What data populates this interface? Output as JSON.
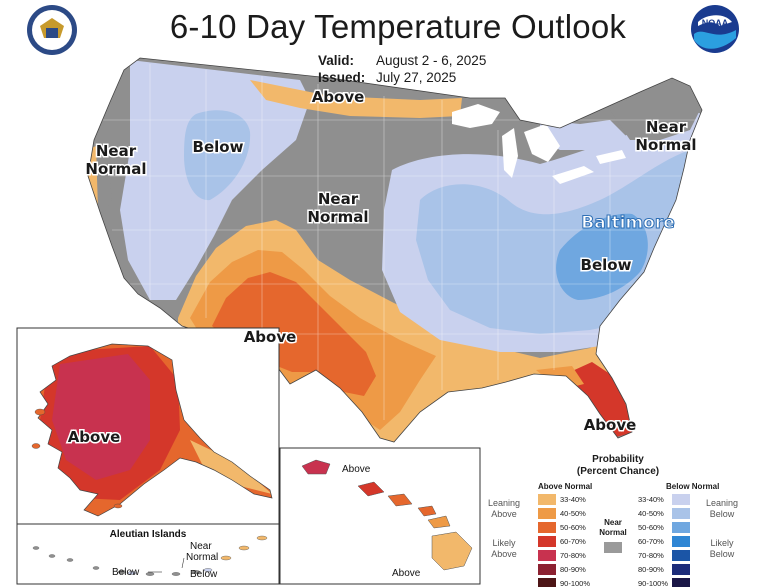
{
  "header": {
    "title": "6-10 Day Temperature Outlook",
    "valid_label": "Valid:",
    "valid_value": "August 2 - 6, 2025",
    "issued_label": "Issued:",
    "issued_value": "July 27, 2025"
  },
  "logos": {
    "left": "department-of-commerce-seal",
    "right": "noaa-logo"
  },
  "map_labels": {
    "above_north": "Above",
    "near_normal_west_1": "Near",
    "near_normal_west_2": "Normal",
    "below_west": "Below",
    "near_normal_central_1": "Near",
    "near_normal_central_2": "Normal",
    "near_normal_ne_1": "Near",
    "near_normal_ne_2": "Normal",
    "city": "Baltimore",
    "below_east": "Below",
    "above_southwest": "Above",
    "above_florida": "Above",
    "above_alaska": "Above",
    "above_hawaii_1": "Above",
    "above_hawaii_2": "Above",
    "aleutian_title": "Aleutian Islands",
    "aleutian_near_1": "Near",
    "aleutian_near_2": "Normal",
    "aleutian_below_1": "Below",
    "aleutian_below_2": "Below"
  },
  "colors": {
    "near_normal": "#8f8f8f",
    "above_33_40": "#f2b86b",
    "above_40_50": "#ee9a46",
    "above_50_60": "#e5672d",
    "above_60_70": "#d4372a",
    "above_70_80": "#c8324f",
    "above_80_90": "#8c2131",
    "above_90_100": "#4d1516",
    "below_33_40": "#c9d1ee",
    "below_40_50": "#a9c3e8",
    "below_50_60": "#6fa7e0",
    "below_60_70": "#2f86d4",
    "below_70_80": "#1b55a6",
    "below_80_90": "#1c2c7a",
    "below_90_100": "#1a1646"
  },
  "legend": {
    "title_1": "Probability",
    "title_2": "(Percent Chance)",
    "above_head": "Above Normal",
    "below_head": "Below Normal",
    "near_head_1": "Near",
    "near_head_2": "Normal",
    "leaning_above_1": "Leaning",
    "leaning_above_2": "Above",
    "likely_above_1": "Likely",
    "likely_above_2": "Above",
    "leaning_below_1": "Leaning",
    "leaning_below_2": "Below",
    "likely_below_1": "Likely",
    "likely_below_2": "Below",
    "ranges": [
      "33-40%",
      "40-50%",
      "50-60%",
      "60-70%",
      "70-80%",
      "80-90%",
      "90-100%"
    ]
  }
}
